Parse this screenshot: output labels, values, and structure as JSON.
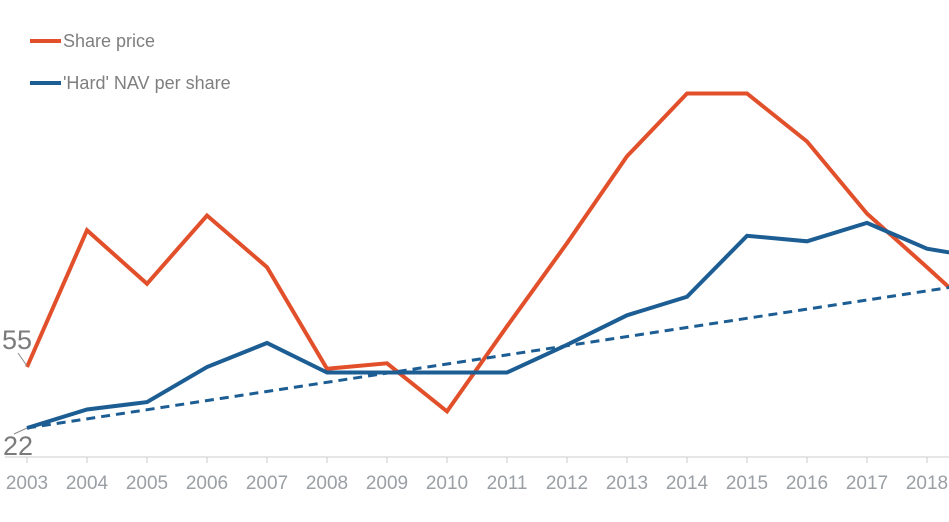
{
  "legend": {
    "items": [
      {
        "label": "Share price",
        "color": "#e2502b"
      },
      {
        "label": "'Hard' NAV per share",
        "color": "#1c5d93"
      }
    ]
  },
  "chart_data": {
    "type": "line",
    "title": "",
    "xlabel": "",
    "ylabel": "",
    "grid": false,
    "legend_position": "top-left",
    "x": [
      2003,
      2004,
      2005,
      2006,
      2007,
      2008,
      2009,
      2010,
      2011,
      2012,
      2013,
      2014,
      2015,
      2016,
      2017,
      2018
    ],
    "x_tick_labels": [
      "2003",
      "2004",
      "2005",
      "2006",
      "2007",
      "2008",
      "2009",
      "2010",
      "2011",
      "2012",
      "2013",
      "2014",
      "2015",
      "2016",
      "2017",
      "2018"
    ],
    "y_axis_visible": false,
    "ylim": [
      0,
      215
    ],
    "series": [
      {
        "name": "Share price",
        "type": "line",
        "style": "solid",
        "color": "#e2502b",
        "values": [
          55,
          129,
          100,
          137,
          109,
          54,
          57,
          31,
          77,
          122,
          169,
          203,
          203,
          177,
          138,
          109
        ],
        "extends_to_right_edge": {
          "x": 2018.37,
          "value": 98
        }
      },
      {
        "name": "'Hard' NAV per share",
        "type": "line",
        "style": "solid",
        "color": "#1c5d93",
        "values": [
          22,
          32,
          36,
          55,
          68,
          52,
          52,
          52,
          52,
          67,
          83,
          93,
          126,
          123,
          133,
          119
        ],
        "extends_to_right_edge": {
          "x": 2018.37,
          "value": 117
        }
      },
      {
        "name": "NAV trend line",
        "type": "line",
        "style": "dashed",
        "color": "#1c5d93",
        "points": [
          {
            "x": 2003,
            "value": 22
          },
          {
            "x": 2018.37,
            "value": 98
          }
        ]
      }
    ],
    "annotations": [
      {
        "text": "55",
        "series": "Share price",
        "x": 2003,
        "value": 55
      },
      {
        "text": "22",
        "series": "'Hard' NAV per share",
        "x": 2003,
        "value": 22
      }
    ]
  },
  "colors": {
    "axis_line": "#cccccc",
    "tick_label": "#9a9fa5",
    "annotation_text": "#7b7b7b",
    "leader_line": "#8a8a8a"
  }
}
